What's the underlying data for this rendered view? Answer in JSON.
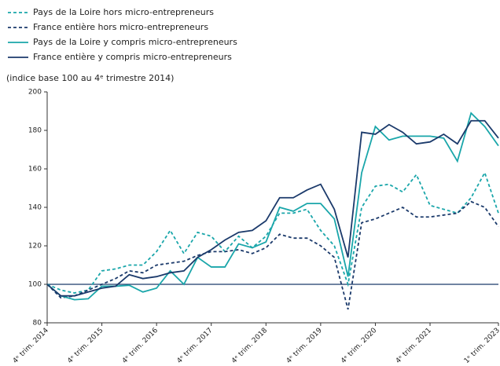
{
  "chart_data": {
    "type": "line",
    "note": "(indice base 100 au 4ᵉ trimestre 2014)",
    "categories": [
      "4ᵉ trim. 2014",
      null,
      null,
      null,
      "4ᵉ trim. 2015",
      null,
      null,
      null,
      "4ᵉ trim. 2016",
      null,
      null,
      null,
      "4ᵉ trim. 2017",
      null,
      null,
      null,
      "4ᵉ trim. 2018",
      null,
      null,
      null,
      "4ᵉ trim. 2019",
      null,
      null,
      null,
      "4ᵉ trim. 2020",
      null,
      null,
      null,
      "4ᵉ trim. 2021",
      null,
      null,
      null,
      null,
      "1ᵉ trim. 2023"
    ],
    "series": [
      {
        "name": "Pays de la Loire hors micro-entrepreneurs",
        "color": "#1aa6aa",
        "dashed": true,
        "values": [
          100,
          97,
          95.5,
          97,
          107,
          108,
          110,
          110,
          117,
          128,
          116,
          127,
          125,
          117,
          125,
          119,
          125,
          137,
          137,
          139,
          128,
          120,
          100,
          140,
          151,
          152,
          148,
          157,
          141,
          139,
          137,
          145,
          158,
          137
        ]
      },
      {
        "name": "France entière hors micro-entrepreneurs",
        "color": "#1b3a6b",
        "dashed": true,
        "values": [
          100,
          93,
          94,
          97,
          100,
          103,
          107,
          106,
          110,
          111,
          112,
          115,
          117,
          117,
          118,
          116,
          119,
          126,
          124,
          124,
          120,
          114,
          87,
          132,
          134,
          137,
          140,
          135,
          135,
          136,
          137,
          143,
          140,
          130
        ]
      },
      {
        "name": "Pays de la Loire y compris micro-entrepreneurs",
        "color": "#1aa6aa",
        "dashed": false,
        "values": [
          100,
          94,
          92,
          92.5,
          99,
          99,
          99.5,
          96,
          98,
          107,
          100,
          114,
          109,
          109,
          121,
          119,
          122,
          140,
          138,
          142,
          142,
          134,
          104,
          158,
          182,
          175,
          177,
          177,
          177,
          176,
          164,
          189,
          182,
          172
        ]
      },
      {
        "name": "France entière y compris micro-entrepreneurs",
        "color": "#1b3a6b",
        "dashed": false,
        "values": [
          100,
          94,
          94,
          96,
          98,
          99,
          105,
          103,
          104,
          106,
          107,
          114,
          118,
          123,
          127,
          128,
          133,
          145,
          145,
          149,
          152,
          139,
          114,
          179,
          178,
          183,
          179,
          173,
          174,
          178,
          173,
          185,
          185,
          176
        ]
      }
    ],
    "reference_line": 100,
    "ylim": [
      80,
      200
    ],
    "yticks": [
      80,
      100,
      120,
      140,
      160,
      180,
      200
    ]
  }
}
